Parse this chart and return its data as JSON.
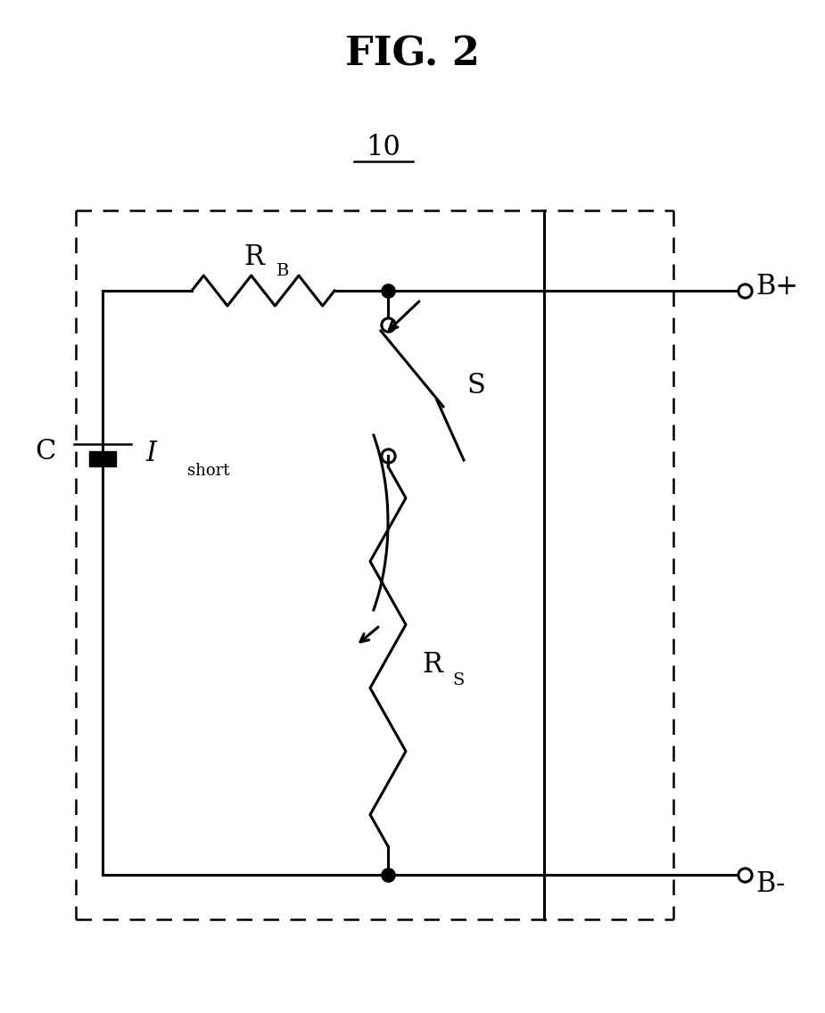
{
  "title": "FIG. 2",
  "label_10": "10",
  "label_RB": "R",
  "label_RB_sub": "B",
  "label_RS": "R",
  "label_RS_sub": "S",
  "label_S": "S",
  "label_C": "C",
  "label_Ishort": "I",
  "label_Ishort_sub": "short",
  "label_Bplus": "B+",
  "label_Bminus": "B-",
  "bg_color": "#ffffff",
  "line_color": "#000000",
  "lw": 2.2,
  "dashed_lw": 1.8,
  "title_fontsize": 32,
  "label_fontsize": 22,
  "sub_fontsize": 14
}
